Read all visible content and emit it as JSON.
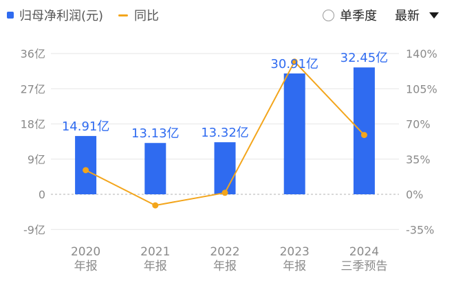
{
  "legend": {
    "bar_label": "归母净利润(元)",
    "line_label": "同比"
  },
  "controls": {
    "single_quarter_label": "单季度",
    "sort_label": "最新"
  },
  "colors": {
    "bar": "#2f6bf0",
    "line": "#f3a51b",
    "bar_label": "#2f6bf0",
    "axis_text": "#8a8a8a",
    "grid": "#e6e6e6"
  },
  "chart_data": {
    "type": "bar",
    "categories": [
      [
        "2020",
        "年报"
      ],
      [
        "2021",
        "年报"
      ],
      [
        "2022",
        "年报"
      ],
      [
        "2023",
        "年报"
      ],
      [
        "2024",
        "三季预告"
      ]
    ],
    "series": [
      {
        "name": "归母净利润(元)",
        "type": "bar",
        "axis": "left",
        "values": [
          14.91,
          13.13,
          13.32,
          30.91,
          32.45
        ],
        "labels": [
          "14.91亿",
          "13.13亿",
          "13.32亿",
          "30.91亿",
          "32.45亿"
        ]
      },
      {
        "name": "同比",
        "type": "line",
        "axis": "right",
        "values": [
          24,
          -11,
          1.5,
          132,
          59
        ]
      }
    ],
    "y_left": {
      "min": -9,
      "max": 36,
      "ticks": [
        -9,
        0,
        9,
        18,
        27,
        36
      ],
      "tick_labels": [
        "-9亿",
        "0",
        "9亿",
        "18亿",
        "27亿",
        "36亿"
      ]
    },
    "y_right": {
      "min": -35,
      "max": 140,
      "ticks": [
        -35,
        0,
        35,
        70,
        105,
        140
      ],
      "tick_labels": [
        "-35%",
        "0%",
        "35%",
        "70%",
        "105%",
        "140%"
      ]
    },
    "grid": true
  }
}
